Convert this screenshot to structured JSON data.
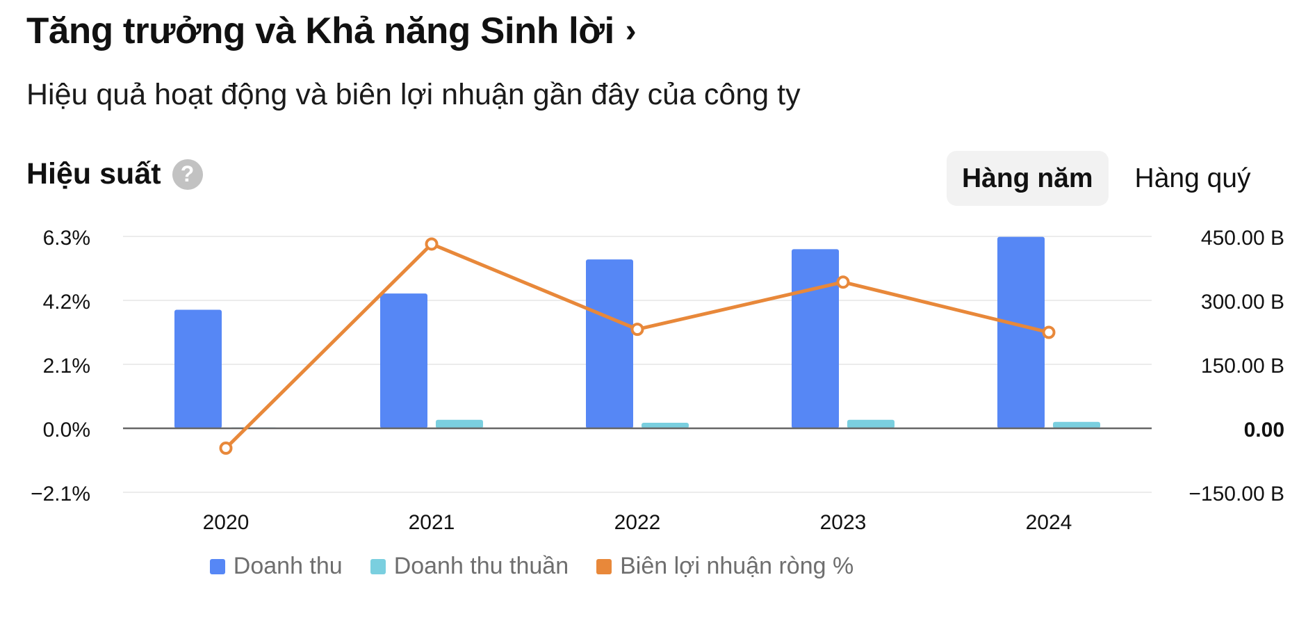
{
  "header": {
    "title": "Tăng trưởng và Khả năng Sinh lời",
    "title_chevron": "›",
    "subtitle": "Hiệu quả hoạt động và biên lợi nhuận gần đây của công ty"
  },
  "section": {
    "title": "Hiệu suất",
    "help_icon": "question-circle-icon",
    "help_glyph": "?"
  },
  "period_toggle": {
    "options": [
      "Hàng năm",
      "Hàng quý"
    ],
    "selected": "Hàng năm"
  },
  "colors": {
    "revenue": "#5687F5",
    "net_revenue": "#7ACFDF",
    "net_margin": "#E8883A",
    "grid": "#ececec",
    "zero_line": "#666666",
    "tick_text": "#111111"
  },
  "chart_data": {
    "type": "bar",
    "categories": [
      "2020",
      "2021",
      "2022",
      "2023",
      "2024"
    ],
    "series": [
      {
        "name": "Doanh thu",
        "type": "bar",
        "axis": "right",
        "values": [
          278,
          316,
          396,
          420,
          449
        ]
      },
      {
        "name": "Doanh thu thuần",
        "type": "bar",
        "axis": "right",
        "values": [
          2,
          20,
          13,
          20,
          15
        ]
      },
      {
        "name": "Biên lợi nhuận ròng %",
        "type": "line",
        "axis": "left",
        "values": [
          -0.65,
          6.05,
          3.25,
          4.8,
          3.15
        ]
      }
    ],
    "y_left": {
      "ticks": [
        "6.3%",
        "4.2%",
        "2.1%",
        "0.0%",
        "−2.1%"
      ],
      "range": [
        -2.1,
        6.3
      ]
    },
    "y_right": {
      "ticks": [
        "450.00 B",
        "300.00 B",
        "150.00 B",
        "0.00",
        "−150.00 B"
      ],
      "range": [
        -150,
        450
      ]
    },
    "grid": true,
    "legend_position": "bottom-center"
  }
}
